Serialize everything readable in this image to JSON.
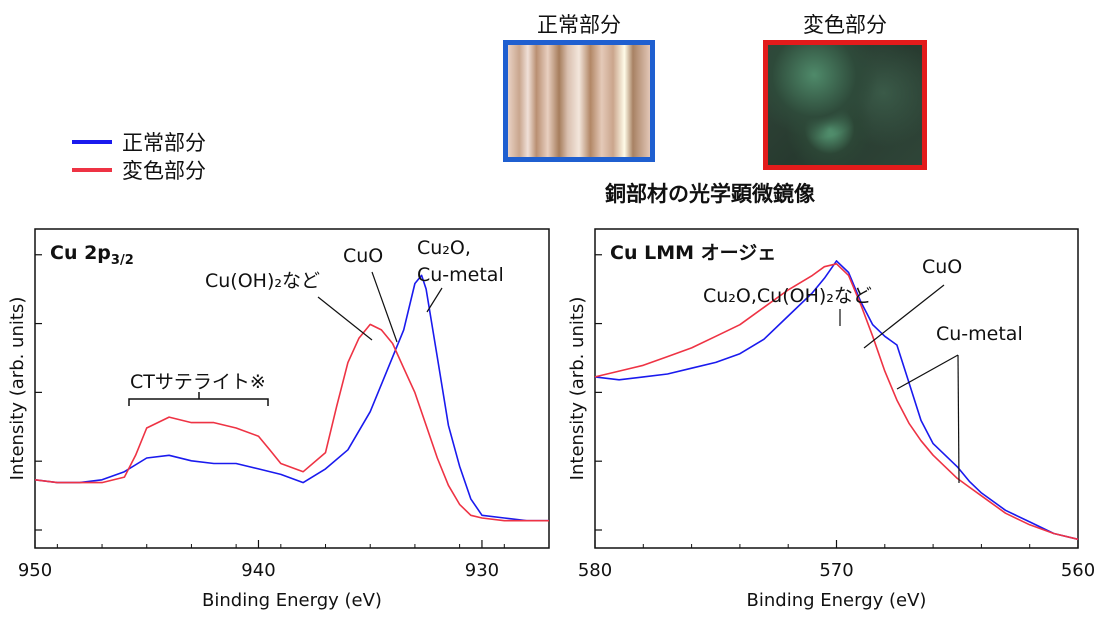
{
  "legend": {
    "items": [
      {
        "label": "正常部分",
        "color": "#1a1aee"
      },
      {
        "label": "変色部分",
        "color": "#ee3344"
      }
    ]
  },
  "photos": {
    "normal": {
      "label": "正常部分",
      "border_color": "#1f5fd0"
    },
    "discolored": {
      "label": "変色部分",
      "border_color": "#e31b1b"
    },
    "caption": "銅部材の光学顕微鏡像"
  },
  "chart_data": [
    {
      "type": "line",
      "title": "Cu 2p3/2",
      "title_main": "Cu 2p",
      "title_sub": "3/2",
      "xlabel": "Binding Energy (eV)",
      "ylabel": "Intensity (arb. units)",
      "xlim": [
        950,
        927
      ],
      "x_ticks": [
        950,
        940,
        930
      ],
      "x_tick_labels": [
        "950",
        "940",
        "930"
      ],
      "annotations": {
        "ct_satellite": "CTサテライト※",
        "cuoh2": "Cu(OH)₂など",
        "cuo": "CuO",
        "cu2o_line1": "Cu₂O,",
        "cu2o_line2": "Cu-metal"
      },
      "series": [
        {
          "name": "正常部分",
          "color": "#1a1aee",
          "x": [
            950,
            949,
            948,
            947,
            946,
            945,
            944,
            943,
            942,
            941,
            940,
            939,
            938,
            937,
            936,
            935,
            934,
            933.5,
            933,
            932.7,
            932.5,
            932,
            931.5,
            931,
            930.5,
            930,
            929,
            928,
            927
          ],
          "y": [
            0.25,
            0.24,
            0.24,
            0.25,
            0.28,
            0.33,
            0.34,
            0.32,
            0.31,
            0.31,
            0.29,
            0.27,
            0.24,
            0.29,
            0.36,
            0.5,
            0.7,
            0.8,
            0.97,
            1.0,
            0.95,
            0.7,
            0.45,
            0.3,
            0.18,
            0.12,
            0.11,
            0.1,
            0.1
          ]
        },
        {
          "name": "変色部分",
          "color": "#ee3344",
          "x": [
            950,
            949,
            948,
            947,
            946,
            945.5,
            945,
            944,
            943,
            942,
            941,
            940,
            939.5,
            939,
            938,
            937,
            936.5,
            936,
            935.5,
            935,
            934.5,
            934,
            933.5,
            933,
            932.5,
            932,
            931.5,
            931,
            930.5,
            930,
            929,
            928,
            927
          ],
          "y": [
            0.25,
            0.24,
            0.24,
            0.24,
            0.26,
            0.34,
            0.44,
            0.48,
            0.46,
            0.46,
            0.44,
            0.41,
            0.36,
            0.31,
            0.28,
            0.35,
            0.52,
            0.68,
            0.77,
            0.82,
            0.8,
            0.75,
            0.66,
            0.57,
            0.45,
            0.33,
            0.23,
            0.16,
            0.12,
            0.11,
            0.1,
            0.1,
            0.1
          ]
        }
      ]
    },
    {
      "type": "line",
      "title": "Cu LMM オージェ",
      "xlabel": "Binding Energy (eV)",
      "ylabel": "Intensity (arb. units)",
      "xlim": [
        580,
        560
      ],
      "x_ticks": [
        580,
        570,
        560
      ],
      "x_tick_labels": [
        "580",
        "570",
        "560"
      ],
      "annotations": {
        "cu2o_cuoh2": "Cu₂O,Cu(OH)₂など",
        "cuo": "CuO",
        "cu_metal": "Cu-metal"
      },
      "series": [
        {
          "name": "正常部分",
          "color": "#1a1aee",
          "x": [
            580,
            579,
            578,
            577,
            576,
            575,
            574,
            573,
            572,
            571,
            570.5,
            570,
            569.5,
            569,
            568.5,
            568,
            567.5,
            567,
            566.5,
            566,
            565.5,
            565,
            564.5,
            564,
            563,
            562,
            561,
            560
          ],
          "y": [
            0.59,
            0.58,
            0.59,
            0.6,
            0.62,
            0.64,
            0.67,
            0.72,
            0.8,
            0.88,
            0.93,
            0.99,
            0.95,
            0.85,
            0.77,
            0.73,
            0.7,
            0.57,
            0.44,
            0.36,
            0.32,
            0.28,
            0.23,
            0.19,
            0.13,
            0.09,
            0.05,
            0.03
          ]
        },
        {
          "name": "変色部分",
          "color": "#ee3344",
          "x": [
            580,
            579,
            578,
            577,
            576,
            575,
            574,
            573,
            572,
            571,
            570.5,
            570,
            569.5,
            569,
            568.5,
            568,
            567.5,
            567,
            566.5,
            566,
            565.5,
            565,
            564.5,
            564,
            563,
            562,
            561,
            560
          ],
          "y": [
            0.59,
            0.61,
            0.63,
            0.66,
            0.69,
            0.73,
            0.77,
            0.83,
            0.89,
            0.94,
            0.97,
            0.98,
            0.94,
            0.84,
            0.73,
            0.61,
            0.51,
            0.43,
            0.37,
            0.32,
            0.28,
            0.24,
            0.21,
            0.18,
            0.12,
            0.08,
            0.05,
            0.03
          ]
        }
      ]
    }
  ]
}
